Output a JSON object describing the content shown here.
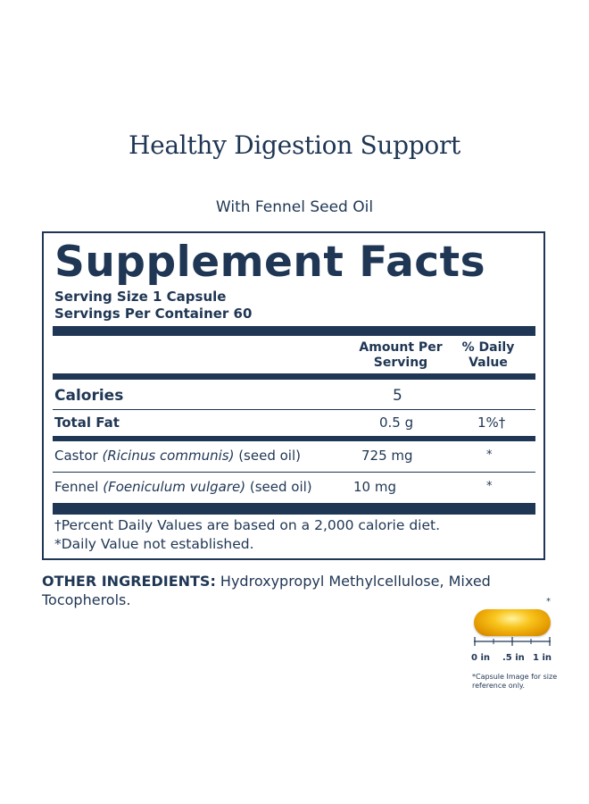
{
  "heading": "Healthy Digestion Support",
  "subheading": "With Fennel Seed Oil",
  "facts": {
    "title": "Supplement Facts",
    "serving_size": "Serving Size 1 Capsule",
    "servings_per_container": "Servings Per Container 60",
    "col_amount": "Amount Per Serving",
    "col_amount_1": "Amount Per",
    "col_amount_2": "Serving",
    "col_dv_1": "% Daily",
    "col_dv_2": "Value",
    "rows": [
      {
        "name": "Calories",
        "amount": "5",
        "dv": ""
      },
      {
        "name": "Total Fat",
        "amount": "0.5 g",
        "dv": "1%†"
      },
      {
        "name_prefix": "Castor ",
        "name_latin": "(Ricinus communis)",
        "name_suffix": " (seed oil)",
        "amount": "725 mg",
        "dv": "*"
      },
      {
        "name_prefix": "Fennel ",
        "name_latin": "(Foeniculum vulgare)",
        "name_suffix": " (seed oil)",
        "amount": "10 mg",
        "dv": "*"
      }
    ],
    "footnote_1": "†Percent Daily Values are based on a 2,000 calorie diet.",
    "footnote_2": "*Daily Value not established."
  },
  "other_ingredients": {
    "label": "OTHER INGREDIENTS:",
    "text": " Hydroxypropyl Methylcellulose, Mixed Tocopherols."
  },
  "capsule": {
    "star": "*",
    "scale_labels": [
      "0 in",
      ".5 in",
      "1 in"
    ],
    "note": "*Capsule Image for size reference only."
  },
  "colors": {
    "navy": "#1f3654",
    "capsule": "#f8c41c"
  }
}
